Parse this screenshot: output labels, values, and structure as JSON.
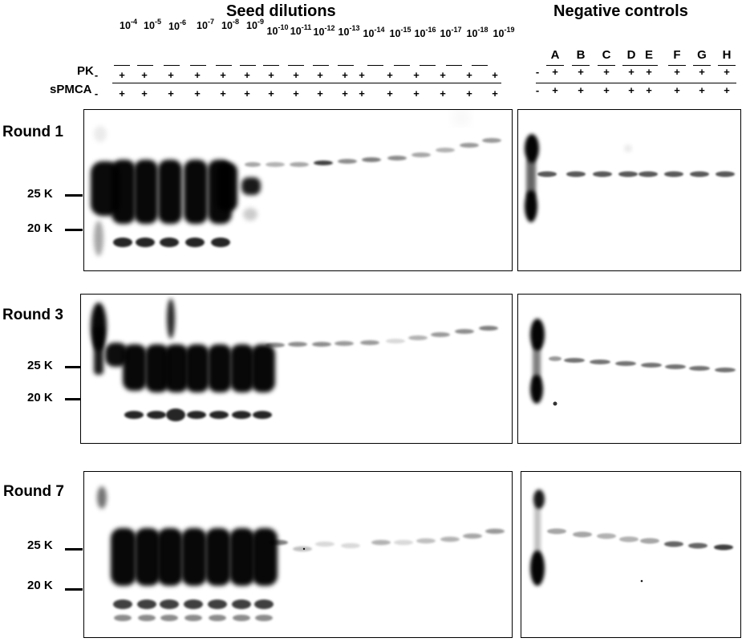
{
  "titles": {
    "seed": "Seed dilutions",
    "negative": "Negative controls"
  },
  "row_labels": {
    "pk": "PK",
    "spmca": "sPMCA"
  },
  "dilutions": [
    {
      "base": "10",
      "exp": "-4"
    },
    {
      "base": "10",
      "exp": "-5"
    },
    {
      "base": "10",
      "exp": "-6"
    },
    {
      "base": "10",
      "exp": "-7"
    },
    {
      "base": "10",
      "exp": "-8"
    },
    {
      "base": "10",
      "exp": "-9"
    },
    {
      "base": "10",
      "exp": "-10"
    },
    {
      "base": "10",
      "exp": "-11"
    },
    {
      "base": "10",
      "exp": "-12"
    },
    {
      "base": "10",
      "exp": "-13"
    },
    {
      "base": "10",
      "exp": "-14"
    },
    {
      "base": "10",
      "exp": "-15"
    },
    {
      "base": "10",
      "exp": "-16"
    },
    {
      "base": "10",
      "exp": "-17"
    },
    {
      "base": "10",
      "exp": "-18"
    },
    {
      "base": "10",
      "exp": "-19"
    }
  ],
  "controls": [
    "A",
    "B",
    "C",
    "D",
    "E",
    "F",
    "G",
    "H"
  ],
  "signs": {
    "minus": "-",
    "plus": "+"
  },
  "rounds": [
    {
      "label": "Round 1",
      "mw_25": "25 K",
      "mw_20": "20 K"
    },
    {
      "label": "Round 3",
      "mw_25": "25 K",
      "mw_20": "20 K"
    },
    {
      "label": "Round 7",
      "mw_25": "25 K",
      "mw_20": "20 K"
    }
  ]
}
